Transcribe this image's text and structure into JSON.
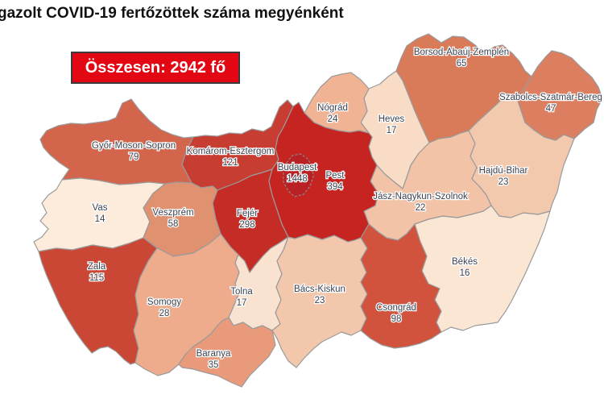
{
  "page": {
    "title": "gazolt COVID-19 fertőzöttek száma megyénként"
  },
  "badge": {
    "text": "Összesen: 2942 fő",
    "bg_color": "#e30613",
    "border_color": "#3a3a3a",
    "text_color": "#ffffff"
  },
  "map": {
    "border_color": "#9a9a9a",
    "budapest_border_color": "#8a8a8a",
    "label_color": "#3a4352",
    "label_halo": "#ffffff",
    "background": "#ffffff"
  },
  "chart_data": {
    "type": "choropleth",
    "title": "gazolt COVID-19 fertőzöttek száma megyénként",
    "total_label": "Összesen: 2942 fő",
    "total_value": 2942,
    "unit": "fő",
    "legend": "none",
    "regions": [
      {
        "id": "gyor-moson-sopron",
        "name": "Győr-Moson-Sopron",
        "value": 79,
        "color": "#d3654c"
      },
      {
        "id": "komarom-esztergom",
        "name": "Komárom-Esztergom",
        "value": 121,
        "color": "#c73d31"
      },
      {
        "id": "vas",
        "name": "Vas",
        "value": 14,
        "color": "#fdecdc"
      },
      {
        "id": "veszprem",
        "name": "Veszprém",
        "value": 58,
        "color": "#e0916f"
      },
      {
        "id": "zala",
        "name": "Zala",
        "value": 115,
        "color": "#cb4735"
      },
      {
        "id": "somogy",
        "name": "Somogy",
        "value": 28,
        "color": "#eeac8d"
      },
      {
        "id": "tolna",
        "name": "Tolna",
        "value": 17,
        "color": "#f9e2cf"
      },
      {
        "id": "baranya",
        "name": "Baranya",
        "value": 35,
        "color": "#e99a7b"
      },
      {
        "id": "fejer",
        "name": "Fejér",
        "value": 298,
        "color": "#c62c26"
      },
      {
        "id": "bacs-kiskun",
        "name": "Bács-Kiskun",
        "value": 23,
        "color": "#f3c7ac"
      },
      {
        "id": "csongrad",
        "name": "Csongrád",
        "value": 98,
        "color": "#d1523d"
      },
      {
        "id": "bekes",
        "name": "Békés",
        "value": 16,
        "color": "#fae6d3"
      },
      {
        "id": "jasz-nagykun-szolnok",
        "name": "Jász-Nagykun-Szolnok",
        "value": 22,
        "color": "#f2c3a7"
      },
      {
        "id": "hajdu-bihar",
        "name": "Hajdú-Bihar",
        "value": 23,
        "color": "#f3c9ae"
      },
      {
        "id": "szabolcs-szatmar-bereg",
        "name": "Szabolcs-Szatmár-Bereg",
        "value": 47,
        "color": "#dc7f60"
      },
      {
        "id": "borsod-abauj-zemplen",
        "name": "Borsod-Abaúj-Zemplén",
        "value": 65,
        "color": "#d97a59"
      },
      {
        "id": "heves",
        "name": "Heves",
        "value": 17,
        "color": "#f8dcc6"
      },
      {
        "id": "nograd",
        "name": "Nógrád",
        "value": 24,
        "color": "#f0b394"
      },
      {
        "id": "pest",
        "name": "Pest",
        "value": 394,
        "color": "#c52421"
      },
      {
        "id": "budapest",
        "name": "Budapest",
        "value": 1448,
        "color": "#b92125"
      }
    ]
  }
}
